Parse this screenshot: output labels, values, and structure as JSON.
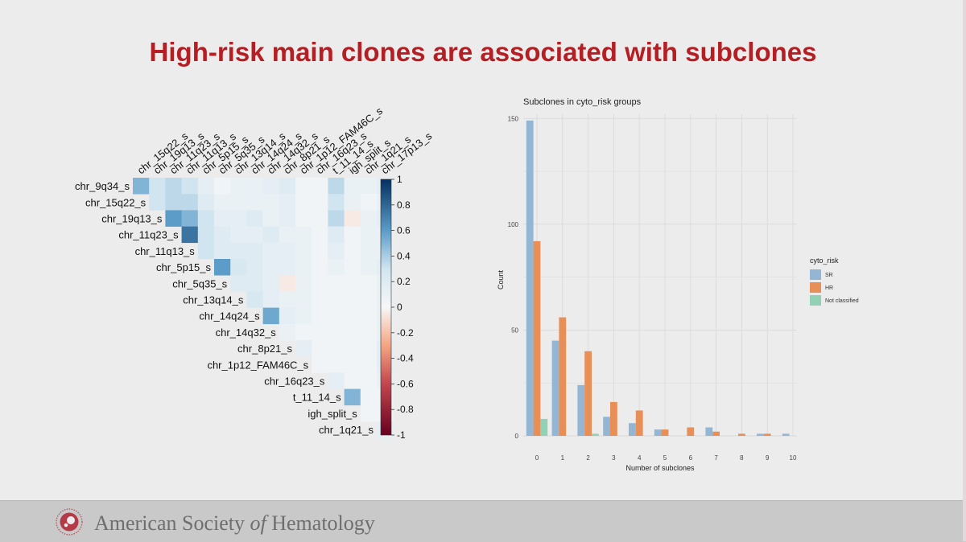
{
  "slide": {
    "title": "High-risk main clones are associated with subclones"
  },
  "footer": {
    "org_name_part1": "American Society ",
    "org_name_italic": "of",
    "org_name_part2": " Hematology",
    "logo_icon": "ash-logo-icon"
  },
  "chart_data": [
    {
      "type": "heatmap",
      "title": "",
      "labels": [
        "chr_9q34_s",
        "chr_15q22_s",
        "chr_19q13_s",
        "chr_11q23_s",
        "chr_11q13_s",
        "chr_5p15_s",
        "chr_5q35_s",
        "chr_13q14_s",
        "chr_14q24_s",
        "chr_14q32_s",
        "chr_8p21_s",
        "chr_1p12_FAM46C_s",
        "chr_16q23_s",
        "t_11_14_s",
        "igh_split_s",
        "chr_1q21_s",
        "chr_17p13_s"
      ],
      "row_labels": [
        "chr_9q34_s",
        "chr_15q22_s",
        "chr_19q13_s",
        "chr_11q23_s",
        "chr_11q13_s",
        "chr_5p15_s",
        "chr_5q35_s",
        "chr_13q14_s",
        "chr_14q24_s",
        "chr_14q32_s",
        "chr_8p21_s",
        "chr_1p12_FAM46C_s",
        "chr_16q23_s",
        "t_11_14_s",
        "igh_split_s",
        "chr_1q21_s"
      ],
      "column_labels": [
        "chr_15q22_s",
        "chr_19q13_s",
        "chr_11q23_s",
        "chr_11q13_s",
        "chr_5p15_s",
        "chr_5q35_s",
        "chr_13q14_s",
        "chr_14q24_s",
        "chr_14q32_s",
        "chr_8p21_s",
        "chr_1p12_FAM46C_s",
        "chr_16q23_s",
        "t_11_14_s",
        "igh_split_s",
        "chr_1q21_s",
        "chr_17p13_s"
      ],
      "layout": "upper-triangle",
      "matrix": [
        [
          0.5,
          0.3,
          0.35,
          0.3,
          0.15,
          0.05,
          0.1,
          0.1,
          0.15,
          0.2,
          0.05,
          0.05,
          0.35,
          0.1,
          0.1,
          0.15
        ],
        [
          null,
          0.3,
          0.35,
          0.35,
          0.2,
          0.1,
          0.1,
          0.1,
          0.1,
          0.15,
          0.05,
          0.05,
          0.3,
          0.1,
          0.05,
          0.1
        ],
        [
          null,
          null,
          0.6,
          0.5,
          0.3,
          0.15,
          0.15,
          0.2,
          0.1,
          0.15,
          0.05,
          0.05,
          0.35,
          -0.05,
          0.1,
          0.15
        ],
        [
          null,
          null,
          null,
          0.75,
          0.3,
          0.2,
          0.15,
          0.15,
          0.2,
          0.1,
          0.1,
          0.05,
          0.2,
          0.05,
          0.1,
          0.1
        ],
        [
          null,
          null,
          null,
          null,
          0.3,
          0.2,
          0.2,
          0.2,
          0.15,
          0.15,
          0.1,
          0.05,
          0.15,
          0.05,
          0.1,
          0.1
        ],
        [
          null,
          null,
          null,
          null,
          null,
          0.6,
          0.25,
          0.2,
          0.15,
          0.15,
          0.1,
          0.05,
          0.1,
          0.05,
          0.1,
          0.15
        ],
        [
          null,
          null,
          null,
          null,
          null,
          null,
          0.2,
          0.2,
          0.15,
          -0.05,
          0.1,
          0.05,
          0.05,
          0.05,
          0.05,
          0.1
        ],
        [
          null,
          null,
          null,
          null,
          null,
          null,
          null,
          0.25,
          0.15,
          0.1,
          0.1,
          0.05,
          0.05,
          0.05,
          0.05,
          0.1
        ],
        [
          null,
          null,
          null,
          null,
          null,
          null,
          null,
          null,
          0.55,
          0.15,
          0.1,
          0.05,
          0.05,
          0.05,
          0.05,
          0.1
        ],
        [
          null,
          null,
          null,
          null,
          null,
          null,
          null,
          null,
          null,
          0.1,
          0.05,
          0.05,
          0.05,
          0.05,
          0.05,
          0.1
        ],
        [
          null,
          null,
          null,
          null,
          null,
          null,
          null,
          null,
          null,
          null,
          0.15,
          0.05,
          0.05,
          0.05,
          0.05,
          0.15
        ],
        [
          null,
          null,
          null,
          null,
          null,
          null,
          null,
          null,
          null,
          null,
          null,
          0.05,
          0.05,
          0.05,
          0.05,
          0.15
        ],
        [
          null,
          null,
          null,
          null,
          null,
          null,
          null,
          null,
          null,
          null,
          null,
          null,
          0.15,
          0.05,
          0.05,
          0.1
        ],
        [
          null,
          null,
          null,
          null,
          null,
          null,
          null,
          null,
          null,
          null,
          null,
          null,
          null,
          0.5,
          0.05,
          0.05
        ],
        [
          null,
          null,
          null,
          null,
          null,
          null,
          null,
          null,
          null,
          null,
          null,
          null,
          null,
          null,
          0.05,
          0.05
        ],
        [
          null,
          null,
          null,
          null,
          null,
          null,
          null,
          null,
          null,
          null,
          null,
          null,
          null,
          null,
          null,
          0.15
        ]
      ],
      "colorbar": {
        "range": [
          -1,
          1
        ],
        "ticks": [
          "1",
          "0.8",
          "0.6",
          "0.4",
          "0.2",
          "0",
          "-0.2",
          "-0.4",
          "-0.6",
          "-0.8",
          "-1"
        ],
        "colors": {
          "neg": "#67001f",
          "mid": "#f7f7f7",
          "pos": "#053061"
        }
      }
    },
    {
      "type": "bar",
      "title": "Subclones in cyto_risk groups",
      "xlabel": "Number of subclones",
      "ylabel": "Count",
      "categories": [
        "0",
        "1",
        "2",
        "3",
        "4",
        "5",
        "6",
        "7",
        "8",
        "9",
        "10"
      ],
      "ylim": [
        0,
        152
      ],
      "yticks": [
        "0",
        "50",
        "100",
        "150"
      ],
      "grid": true,
      "legend_title": "cyto_risk",
      "legend_position": "right",
      "series": [
        {
          "name": "SR",
          "color": "#93b6d4",
          "values": [
            149,
            45,
            24,
            9,
            6,
            3,
            0,
            4,
            0,
            1,
            1
          ]
        },
        {
          "name": "HR",
          "color": "#e88e57",
          "values": [
            92,
            56,
            40,
            16,
            12,
            3,
            4,
            2,
            1,
            1,
            0
          ]
        },
        {
          "name": "Not classified",
          "color": "#93d1b6",
          "values": [
            8,
            0,
            1,
            0,
            0,
            0,
            0,
            0,
            0,
            0,
            0
          ]
        }
      ]
    }
  ]
}
